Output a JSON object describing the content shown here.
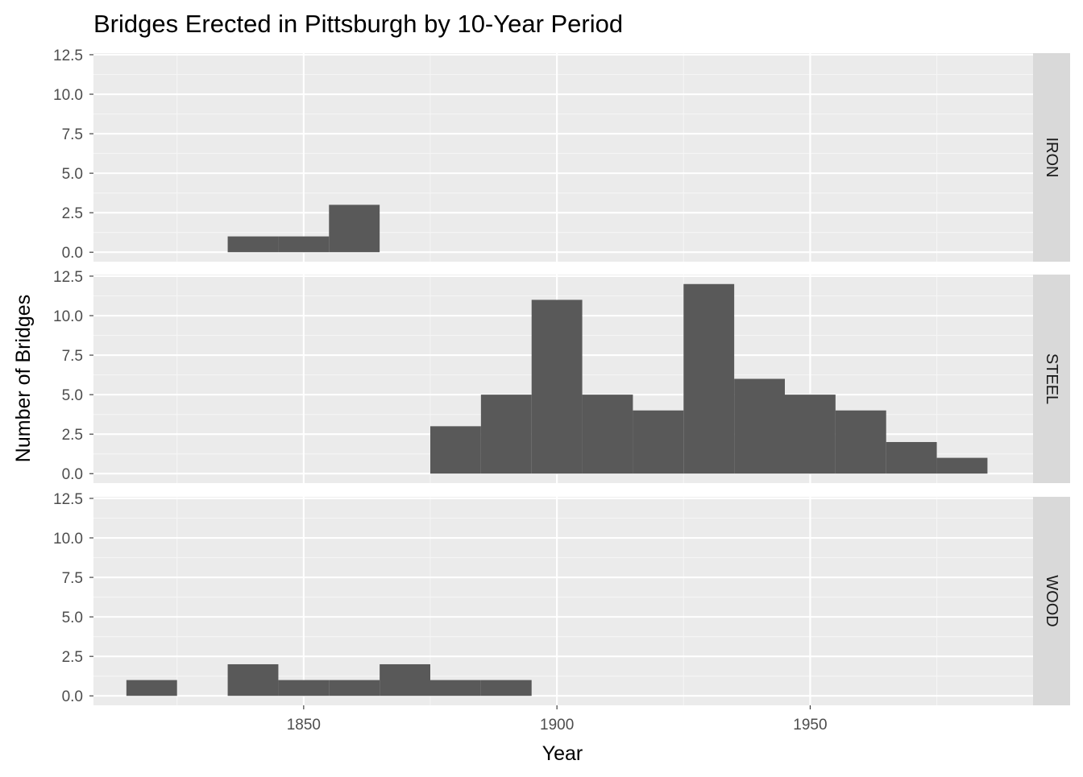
{
  "chart_data": {
    "type": "bar",
    "title": "Bridges Erected in Pittsburgh by 10-Year Period",
    "xlabel": "Year",
    "ylabel": "Number of Bridges",
    "xlim": [
      1808.5,
      1994
    ],
    "ylim": [
      -0.6,
      12.6
    ],
    "x_ticks": [
      1850,
      1900,
      1950
    ],
    "x_tick_labels": [
      "1850",
      "1900",
      "1950"
    ],
    "y_ticks": [
      0,
      2.5,
      5,
      7.5,
      10,
      12.5
    ],
    "y_tick_labels": [
      "0.0",
      "2.5",
      "5.0",
      "7.5",
      "10.0",
      "12.5"
    ],
    "bin_width": 10,
    "grid": true,
    "facets": [
      {
        "label": "IRON",
        "bins": [
          {
            "x": 1840,
            "count": 1
          },
          {
            "x": 1850,
            "count": 1
          },
          {
            "x": 1860,
            "count": 3
          }
        ]
      },
      {
        "label": "STEEL",
        "bins": [
          {
            "x": 1880,
            "count": 3
          },
          {
            "x": 1890,
            "count": 5
          },
          {
            "x": 1900,
            "count": 11
          },
          {
            "x": 1910,
            "count": 5
          },
          {
            "x": 1920,
            "count": 4
          },
          {
            "x": 1930,
            "count": 12
          },
          {
            "x": 1940,
            "count": 6
          },
          {
            "x": 1950,
            "count": 5
          },
          {
            "x": 1960,
            "count": 4
          },
          {
            "x": 1970,
            "count": 2
          },
          {
            "x": 1980,
            "count": 1
          }
        ]
      },
      {
        "label": "WOOD",
        "bins": [
          {
            "x": 1820,
            "count": 1
          },
          {
            "x": 1840,
            "count": 2
          },
          {
            "x": 1850,
            "count": 1
          },
          {
            "x": 1860,
            "count": 1
          },
          {
            "x": 1870,
            "count": 2
          },
          {
            "x": 1880,
            "count": 1
          },
          {
            "x": 1890,
            "count": 1
          }
        ]
      }
    ],
    "colors": {
      "panel_background": "#EBEBEB",
      "grid_major": "#FFFFFF",
      "grid_minor": "#F5F5F5",
      "bar_fill": "#595959",
      "strip_background": "#D9D9D9",
      "strip_text": "#1A1A1A",
      "axis_text": "#4D4D4D",
      "axis_ticks": "#333333",
      "title_text": "#000000"
    }
  }
}
